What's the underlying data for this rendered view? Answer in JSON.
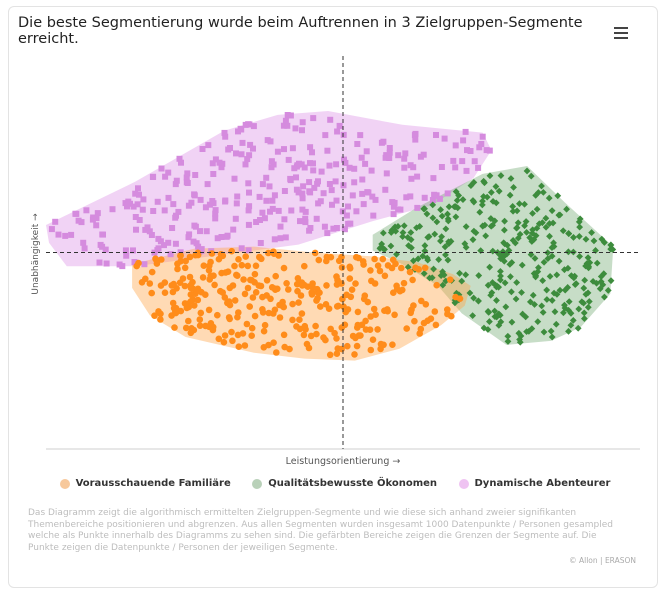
{
  "title": "Die beste Segmentierung wurde beim Auftrennen in 3 Zielgruppen-Segmente erreicht.",
  "menu_icon": "hamburger-menu-icon",
  "description": "Das Diagramm zeigt die algorithmisch ermittelten Zielgruppen-Segmente und wie diese sich anhand zweier signifikanten Themenbereiche positionieren und abgrenzen. Aus allen Segmenten wurden insgesamt 1000 Datenpunkte / Personen gesampled welche als Punkte innerhalb des Diagramms zu sehen sind. Die gefärbten Bereiche zeigen die Grenzen der Segmente auf. Die Punkte zeigen die Datenpunkte / Personen der jeweiligen Segmente.",
  "credit": "© Allon | ERASON",
  "chart_data": {
    "type": "scatter",
    "xlabel": "Leistungsorientierung →",
    "ylabel": "Unabhängigkeit →",
    "xlim": [
      -1,
      1
    ],
    "ylim": [
      -1,
      1
    ],
    "crosshair_at": [
      0,
      0
    ],
    "grid": false,
    "legend_position": "bottom-center",
    "series": [
      {
        "name": "Vorausschauende Familiäre",
        "color": "#ff8c1a",
        "marker": "circle",
        "n_points": 333,
        "center": [
          -0.02,
          -0.27
        ],
        "hull": [
          [
            -0.71,
            -0.06
          ],
          [
            -0.5,
            0.02
          ],
          [
            -0.3,
            0.03
          ],
          [
            -0.1,
            0.0
          ],
          [
            0.1,
            -0.02
          ],
          [
            0.25,
            -0.05
          ],
          [
            0.37,
            -0.11
          ],
          [
            0.43,
            -0.17
          ],
          [
            0.41,
            -0.27
          ],
          [
            0.33,
            -0.37
          ],
          [
            0.19,
            -0.49
          ],
          [
            0.04,
            -0.55
          ],
          [
            -0.13,
            -0.54
          ],
          [
            -0.3,
            -0.51
          ],
          [
            -0.53,
            -0.43
          ],
          [
            -0.65,
            -0.32
          ],
          [
            -0.71,
            -0.18
          ]
        ]
      },
      {
        "name": "Qualitätsbewusste Ökonomen",
        "color": "#3d8c3d",
        "marker": "diamond",
        "n_points": 333,
        "center": [
          0.57,
          0.08
        ],
        "hull": [
          [
            0.1,
            0.09
          ],
          [
            0.25,
            0.23
          ],
          [
            0.47,
            0.4
          ],
          [
            0.62,
            0.44
          ],
          [
            0.75,
            0.25
          ],
          [
            0.91,
            0.03
          ],
          [
            0.9,
            -0.21
          ],
          [
            0.8,
            -0.38
          ],
          [
            0.7,
            -0.45
          ],
          [
            0.55,
            -0.47
          ],
          [
            0.4,
            -0.31
          ],
          [
            0.32,
            -0.17
          ],
          [
            0.2,
            -0.06
          ],
          [
            0.1,
            0.01
          ]
        ]
      },
      {
        "name": "Dynamische Abenteurer",
        "color": "#d58bde",
        "marker": "square",
        "n_points": 334,
        "center": [
          -0.26,
          0.34
        ],
        "hull": [
          [
            -1.0,
            0.14
          ],
          [
            -0.99,
            0.05
          ],
          [
            -0.93,
            -0.07
          ],
          [
            -0.7,
            -0.07
          ],
          [
            -0.4,
            -0.01
          ],
          [
            -0.15,
            0.04
          ],
          [
            0.1,
            0.16
          ],
          [
            0.3,
            0.24
          ],
          [
            0.44,
            0.38
          ],
          [
            0.5,
            0.52
          ],
          [
            0.47,
            0.61
          ],
          [
            0.2,
            0.65
          ],
          [
            -0.05,
            0.72
          ],
          [
            -0.22,
            0.7
          ],
          [
            -0.4,
            0.62
          ],
          [
            -0.7,
            0.36
          ]
        ]
      }
    ]
  }
}
